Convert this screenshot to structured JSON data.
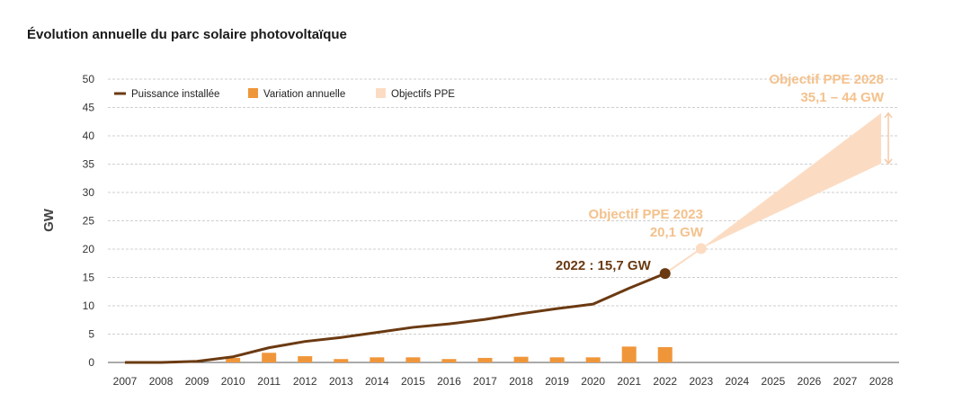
{
  "chart_data": {
    "type": "line",
    "title": "Évolution annuelle du parc solaire photovoltaïque",
    "ylabel": "GW",
    "xlabel": "",
    "ylim": [
      0,
      50
    ],
    "yticks": [
      0,
      5,
      10,
      15,
      20,
      25,
      30,
      35,
      40,
      45,
      50
    ],
    "grid": true,
    "legend_position": "top-left",
    "categories": [
      "2007",
      "2008",
      "2009",
      "2010",
      "2011",
      "2012",
      "2013",
      "2014",
      "2015",
      "2016",
      "2017",
      "2018",
      "2019",
      "2020",
      "2021",
      "2022",
      "2023",
      "2024",
      "2025",
      "2026",
      "2027",
      "2028"
    ],
    "series": [
      {
        "name": "Puissance installée",
        "type": "line",
        "color": "#6b3a12",
        "values": [
          0,
          0,
          0.2,
          1.0,
          2.6,
          3.7,
          4.4,
          5.3,
          6.2,
          6.8,
          7.6,
          8.6,
          9.5,
          10.3,
          13.1,
          15.7,
          null,
          null,
          null,
          null,
          null,
          null
        ]
      },
      {
        "name": "Variation annuelle",
        "type": "bar",
        "color": "#f0963a",
        "values": [
          null,
          null,
          null,
          0.8,
          1.7,
          1.1,
          0.6,
          0.9,
          0.9,
          0.6,
          0.8,
          1.0,
          0.9,
          0.9,
          2.8,
          2.7,
          null,
          null,
          null,
          null,
          null,
          null
        ]
      },
      {
        "name": "Objectifs PPE",
        "type": "area",
        "color": "#fbdcc3",
        "points": [
          {
            "x": "2022",
            "low": 15.7,
            "high": 15.7
          },
          {
            "x": "2023",
            "low": 20.1,
            "high": 20.1
          },
          {
            "x": "2028",
            "low": 35.1,
            "high": 44
          }
        ]
      }
    ],
    "annotations": [
      {
        "label": "2022 : 15,7 GW",
        "x": "2022",
        "y": 15.7,
        "color": "#6b3a12"
      },
      {
        "label": "Objectif PPE 2023",
        "label2": "20,1 GW",
        "x": "2023",
        "y": 20.1,
        "color": "#f4c18c"
      },
      {
        "label": "Objectif PPE 2028",
        "label2": "35,1 – 44 GW",
        "x": "2028",
        "y": 44,
        "color": "#f4c18c"
      }
    ]
  }
}
